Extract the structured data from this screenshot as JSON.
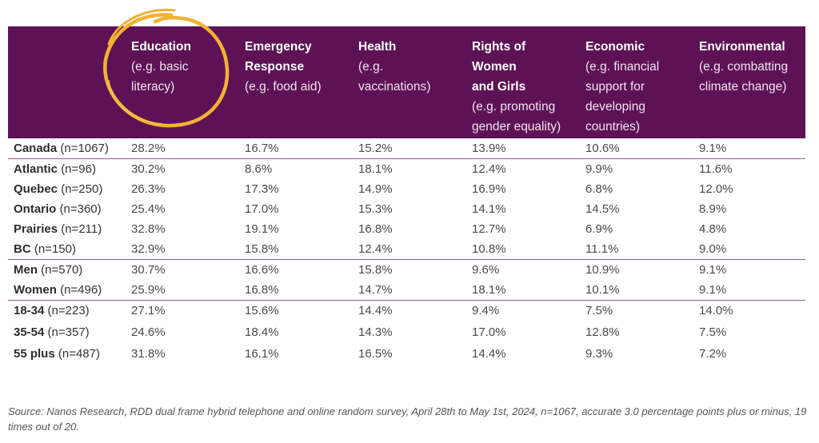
{
  "table": {
    "columns": [
      {
        "title": [
          "Education"
        ],
        "sub": [
          "(e.g. basic",
          "literacy)"
        ]
      },
      {
        "title": [
          "Emergency",
          "Response"
        ],
        "sub": [
          "(e.g. food aid)"
        ]
      },
      {
        "title": [
          "Health"
        ],
        "sub": [
          "(e.g.",
          "vaccinations)"
        ]
      },
      {
        "title": [
          "Rights of",
          "Women",
          "and Girls"
        ],
        "sub": [
          "(e.g. promoting",
          "gender equality)"
        ]
      },
      {
        "title": [
          "Economic"
        ],
        "sub": [
          "(e.g. financial",
          "support for",
          "developing",
          "countries)"
        ]
      },
      {
        "title": [
          "Environmental"
        ],
        "sub": [
          "(e.g. combatting",
          "climate change)"
        ]
      }
    ],
    "groups": [
      [
        {
          "name": "Canada",
          "n": "(n=1067)",
          "values": [
            "28.2%",
            "16.7%",
            "15.2%",
            "13.9%",
            "10.6%",
            "9.1%"
          ]
        }
      ],
      [
        {
          "name": "Atlantic",
          "n": "(n=96)",
          "values": [
            "30.2%",
            "8.6%",
            "18.1%",
            "12.4%",
            "9.9%",
            "11.6%"
          ]
        },
        {
          "name": "Quebec",
          "n": "(n=250)",
          "values": [
            "26.3%",
            "17.3%",
            "14.9%",
            "16.9%",
            "6.8%",
            "12.0%"
          ]
        },
        {
          "name": "Ontario",
          "n": "(n=360)",
          "values": [
            "25.4%",
            "17.0%",
            "15.3%",
            "14.1%",
            "14.5%",
            "8.9%"
          ]
        },
        {
          "name": "Prairies",
          "n": "(n=211)",
          "values": [
            "32.8%",
            "19.1%",
            "16.8%",
            "12.7%",
            "6.9%",
            "4.8%"
          ]
        },
        {
          "name": "BC",
          "n": "(n=150)",
          "values": [
            "32.9%",
            "15.8%",
            "12.4%",
            "10.8%",
            "11.1%",
            "9.0%"
          ]
        }
      ],
      [
        {
          "name": "Men",
          "n": "(n=570)",
          "values": [
            "30.7%",
            "16.6%",
            "15.8%",
            "9.6%",
            "10.9%",
            "9.1%"
          ]
        },
        {
          "name": "Women",
          "n": "(n=496)",
          "values": [
            "25.9%",
            "16.8%",
            "14.7%",
            "18.1%",
            "10.1%",
            "9.1%"
          ]
        }
      ],
      [
        {
          "name": "18-34",
          "n": "(n=223)",
          "values": [
            "27.1%",
            "15.6%",
            "14.4%",
            "9.4%",
            "7.5%",
            "14.0%"
          ]
        },
        {
          "name": "35-54",
          "n": "(n=357)",
          "values": [
            "24.6%",
            "18.4%",
            "14.3%",
            "17.0%",
            "12.8%",
            "7.5%"
          ]
        },
        {
          "name": "55 plus",
          "n": "(n=487)",
          "values": [
            "31.8%",
            "16.1%",
            "16.5%",
            "14.4%",
            "9.3%",
            "7.2%"
          ]
        }
      ]
    ]
  },
  "source": "Source: Nanos Research, RDD dual frame hybrid telephone and online random survey, April 28th to May 1st, 2024, n=1067, accurate 3.0 percentage points plus or minus, 19 times out of 20.",
  "colors": {
    "header_bg": "#5e1256",
    "divider": "#9b5990",
    "highlight_circle": "#f2b233"
  },
  "icons": {
    "highlight": "hand-drawn-circle-icon"
  }
}
